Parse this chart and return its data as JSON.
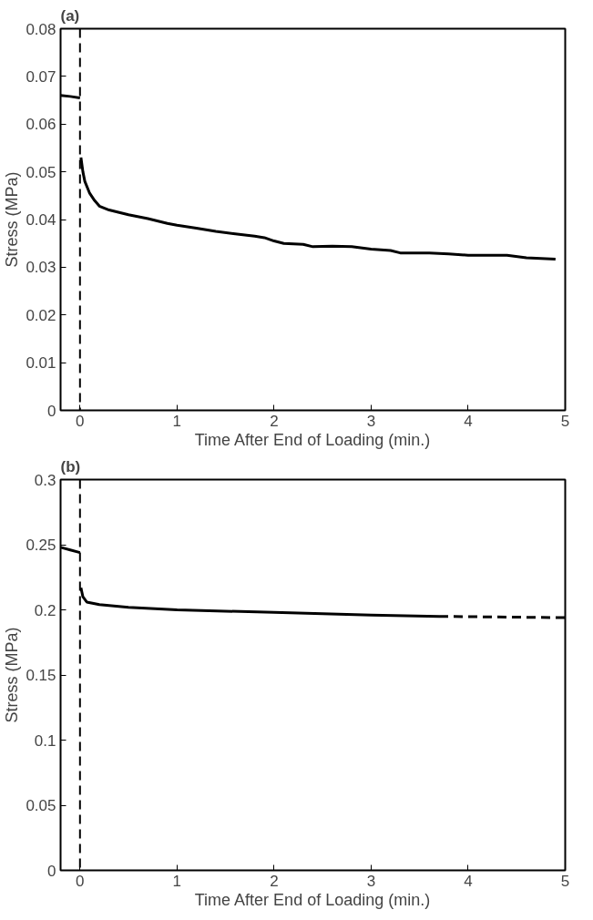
{
  "chart_data": [
    {
      "type": "line",
      "title": "(a)",
      "xlabel": "Time After End of Loading (min.)",
      "ylabel": "Stress (MPa)",
      "xlim": [
        -0.2,
        5
      ],
      "ylim": [
        0,
        0.08
      ],
      "xticks": [
        0,
        1,
        2,
        3,
        4,
        5
      ],
      "yticks": [
        0,
        0.01,
        0.02,
        0.03,
        0.04,
        0.05,
        0.06,
        0.07,
        0.08
      ],
      "grid": false,
      "line_style": "solid",
      "ref_lines": [
        {
          "axis": "x",
          "value": 0,
          "line_style": "dashed",
          "color": "#000000"
        }
      ],
      "series": [
        {
          "color": "#000000",
          "x": [
            -0.2,
            -0.1,
            0,
            0.005,
            0.01,
            0.03,
            0.05,
            0.1,
            0.15,
            0.2,
            0.3,
            0.5,
            0.7,
            0.9,
            1.0,
            1.2,
            1.4,
            1.6,
            1.8,
            1.9,
            2.0,
            2.1,
            2.3,
            2.4,
            2.6,
            2.8,
            3.0,
            3.2,
            3.3,
            3.6,
            3.8,
            4.0,
            4.4,
            4.6,
            4.9
          ],
          "values": [
            0.066,
            0.0658,
            0.0655,
            null,
            0.053,
            0.05,
            0.048,
            0.0455,
            0.044,
            0.0428,
            0.042,
            0.041,
            0.0402,
            0.0392,
            0.0388,
            0.0382,
            0.0375,
            0.037,
            0.0365,
            0.0362,
            0.0355,
            0.035,
            0.0348,
            0.0343,
            0.0344,
            0.0343,
            0.0338,
            0.0335,
            0.033,
            0.033,
            0.0328,
            0.0325,
            0.0325,
            0.032,
            0.0317
          ]
        }
      ]
    },
    {
      "type": "line",
      "title": "(b)",
      "xlabel": "Time After End of Loading (min.)",
      "ylabel": "Stress (MPa)",
      "xlim": [
        -0.2,
        5
      ],
      "ylim": [
        0,
        0.3
      ],
      "xticks": [
        0,
        1,
        2,
        3,
        4,
        5
      ],
      "yticks": [
        0,
        0.05,
        0.1,
        0.15,
        0.2,
        0.25,
        0.3
      ],
      "grid": false,
      "line_style": "solid",
      "ref_lines": [
        {
          "axis": "x",
          "value": 0,
          "line_style": "dashed",
          "color": "#000000"
        }
      ],
      "series": [
        {
          "color": "#000000",
          "x": [
            -0.2,
            -0.1,
            0,
            0.005,
            0.01,
            0.03,
            0.07,
            0.2,
            0.5,
            1.0,
            2.0,
            3.0,
            3.7
          ],
          "values": [
            0.248,
            0.246,
            0.244,
            null,
            0.217,
            0.21,
            0.206,
            0.204,
            0.202,
            0.2,
            0.198,
            0.196,
            0.195
          ]
        },
        {
          "color": "#000000",
          "line_style": "dashed",
          "x": [
            3.7,
            5
          ],
          "values": [
            0.195,
            0.194
          ]
        }
      ]
    }
  ]
}
